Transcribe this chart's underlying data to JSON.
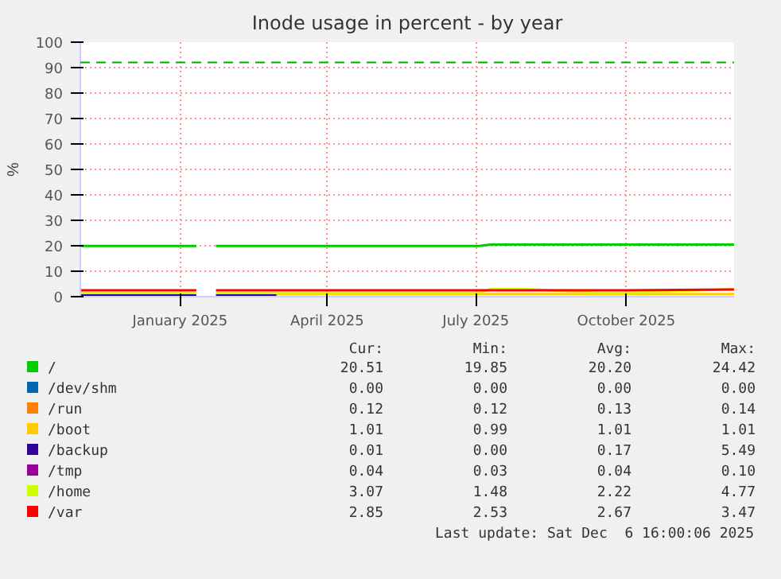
{
  "chart_data": {
    "type": "line",
    "title": "Inode usage in percent - by year",
    "ylabel": "%",
    "x": [
      "2024-11-01",
      "2024-12-01",
      "2025-01-11",
      "2025-01-17",
      "2025-01-23",
      "2025-03-01",
      "2025-05-01",
      "2025-07-03",
      "2025-07-10",
      "2025-08-01",
      "2025-09-15",
      "2025-10-01",
      "2025-12-06"
    ],
    "series": [
      {
        "name": "/",
        "color": "#00cc00",
        "values": [
          19.9,
          19.9,
          19.9,
          null,
          19.9,
          19.9,
          19.9,
          19.9,
          20.5,
          20.5,
          20.5,
          20.5,
          20.5
        ]
      },
      {
        "name": "/dev/shm",
        "color": "#0066b3",
        "values": [
          null,
          null,
          null,
          null,
          null,
          null,
          null,
          null,
          null,
          null,
          null,
          null,
          null
        ]
      },
      {
        "name": "/run",
        "color": "#ff8000",
        "values": [
          null,
          null,
          null,
          null,
          null,
          null,
          null,
          null,
          null,
          null,
          null,
          null,
          null
        ]
      },
      {
        "name": "/boot",
        "color": "#ffcc00",
        "values": [
          1,
          1,
          1,
          null,
          1,
          1,
          1,
          1,
          1,
          1,
          1,
          1,
          1
        ]
      },
      {
        "name": "/backup",
        "color": "#330099",
        "values": [
          0.5,
          0.5,
          0.5,
          null,
          0.5,
          0.5,
          null,
          null,
          null,
          null,
          null,
          null,
          null
        ]
      },
      {
        "name": "/tmp",
        "color": "#990099",
        "values": [
          null,
          null,
          null,
          null,
          null,
          null,
          null,
          null,
          null,
          null,
          null,
          null,
          null
        ]
      },
      {
        "name": "/home",
        "color": "#ccff00",
        "values": [
          1.5,
          1.5,
          1.5,
          null,
          1.5,
          1.5,
          1.5,
          1.5,
          3,
          3,
          1.5,
          1.5,
          3
        ]
      },
      {
        "name": "/var",
        "color": "#ff0000",
        "values": [
          2.5,
          2.5,
          2.5,
          null,
          2.5,
          2.5,
          2.5,
          2.5,
          2.5,
          2.5,
          2.5,
          2.5,
          2.8
        ]
      }
    ],
    "xlim": [
      "2024-11-01",
      "2025-12-06"
    ],
    "xticks": [
      {
        "value": "2025-01-01",
        "label": "January 2025"
      },
      {
        "value": "2025-04-01",
        "label": "April 2025"
      },
      {
        "value": "2025-07-01",
        "label": "July 2025"
      },
      {
        "value": "2025-10-01",
        "label": "October 2025"
      }
    ],
    "ylim": [
      0,
      100
    ],
    "yticks": [
      0,
      10,
      20,
      30,
      40,
      50,
      60,
      70,
      80,
      90,
      100
    ],
    "ref_lines": [
      {
        "axis": "y",
        "value": 92,
        "color": "#00aa00",
        "line_style": "dashed"
      }
    ],
    "grid": true,
    "legend": "bottom",
    "annotations": [
      "Cur:",
      "Min:",
      "Avg:",
      "Max:",
      "20.51",
      "19.85",
      "20.20",
      "24.42",
      "0.00",
      "0.00",
      "0.00",
      "0.00",
      "0.12",
      "0.12",
      "0.13",
      "0.14",
      "1.01",
      "0.99",
      "1.01",
      "1.01",
      "0.01",
      "0.00",
      "0.17",
      "5.49",
      "0.04",
      "0.03",
      "0.04",
      "0.10",
      "3.07",
      "1.48",
      "2.22",
      "4.77",
      "2.85",
      "2.53",
      "2.67",
      "3.47",
      "Last update: Sat Dec  6 16:00:06 2025"
    ]
  }
}
